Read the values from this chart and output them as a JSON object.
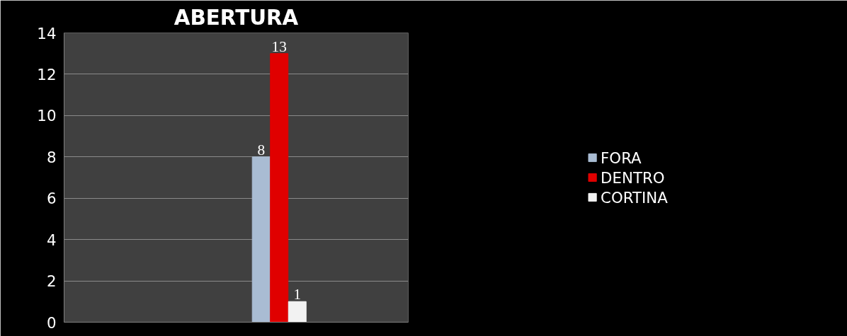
{
  "chart_data": {
    "type": "bar",
    "title": "ABERTURA",
    "categories": [
      null,
      null,
      null,
      null
    ],
    "series": [
      {
        "name": "FORA",
        "color": "#a9bcd3",
        "values": [
          null,
          null,
          8,
          null
        ]
      },
      {
        "name": "DENTRO",
        "color": "#e00000",
        "values": [
          null,
          null,
          13,
          null
        ]
      },
      {
        "name": "CORTINA",
        "color": "#f2f2f2",
        "values": [
          null,
          null,
          1,
          null
        ]
      }
    ],
    "ylim": [
      0,
      14
    ],
    "yticks": [
      0,
      2,
      4,
      6,
      8,
      10,
      12,
      14
    ],
    "grid": "y",
    "legend": "right",
    "data_labels": true
  }
}
